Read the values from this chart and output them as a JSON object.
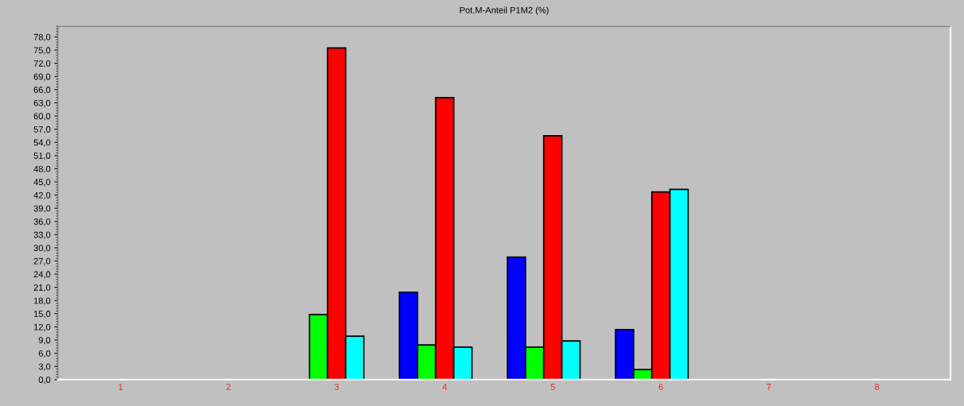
{
  "chart_data": {
    "type": "bar",
    "title": "Pot.M-Anteil P1M2 (%)",
    "categories": [
      "1",
      "2",
      "3",
      "4",
      "5",
      "6",
      "7",
      "8"
    ],
    "series": [
      {
        "color": "#0000ff",
        "values": [
          0,
          0,
          0,
          19.9,
          27.9,
          11.4,
          0,
          0
        ]
      },
      {
        "color": "#00ff00",
        "values": [
          0,
          0,
          14.8,
          7.9,
          7.4,
          2.3,
          0,
          0
        ]
      },
      {
        "color": "#ff0000",
        "values": [
          0,
          0,
          75.5,
          64.2,
          55.5,
          42.7,
          0,
          0
        ]
      },
      {
        "color": "#00ffff",
        "values": [
          0,
          0,
          9.9,
          7.4,
          8.8,
          43.3,
          0,
          0
        ]
      }
    ],
    "ylim": [
      0,
      80.4
    ],
    "yticks": [
      {
        "value": 0,
        "label": "0,0"
      },
      {
        "value": 3,
        "label": "3,0"
      },
      {
        "value": 6,
        "label": "6,0"
      },
      {
        "value": 9,
        "label": "9,0"
      },
      {
        "value": 12,
        "label": "12,0"
      },
      {
        "value": 15,
        "label": "15,0"
      },
      {
        "value": 18,
        "label": "18,0"
      },
      {
        "value": 21,
        "label": "21,0"
      },
      {
        "value": 24,
        "label": "24,0"
      },
      {
        "value": 27,
        "label": "27,0"
      },
      {
        "value": 30,
        "label": "30,0"
      },
      {
        "value": 33,
        "label": "33,0"
      },
      {
        "value": 36,
        "label": "36,0"
      },
      {
        "value": 39,
        "label": "39,0"
      },
      {
        "value": 42,
        "label": "42,0"
      },
      {
        "value": 45,
        "label": "45,0"
      },
      {
        "value": 48,
        "label": "48,0"
      },
      {
        "value": 51,
        "label": "51,0"
      },
      {
        "value": 54,
        "label": "54,0"
      },
      {
        "value": 57,
        "label": "57,0"
      },
      {
        "value": 60,
        "label": "60,0"
      },
      {
        "value": 63,
        "label": "63,0"
      },
      {
        "value": 66,
        "label": "66,0"
      },
      {
        "value": 69,
        "label": "69,0"
      },
      {
        "value": 72,
        "label": "72,0"
      },
      {
        "value": 75,
        "label": "75,0"
      },
      {
        "value": 78,
        "label": "78,0"
      }
    ],
    "grid": false
  }
}
